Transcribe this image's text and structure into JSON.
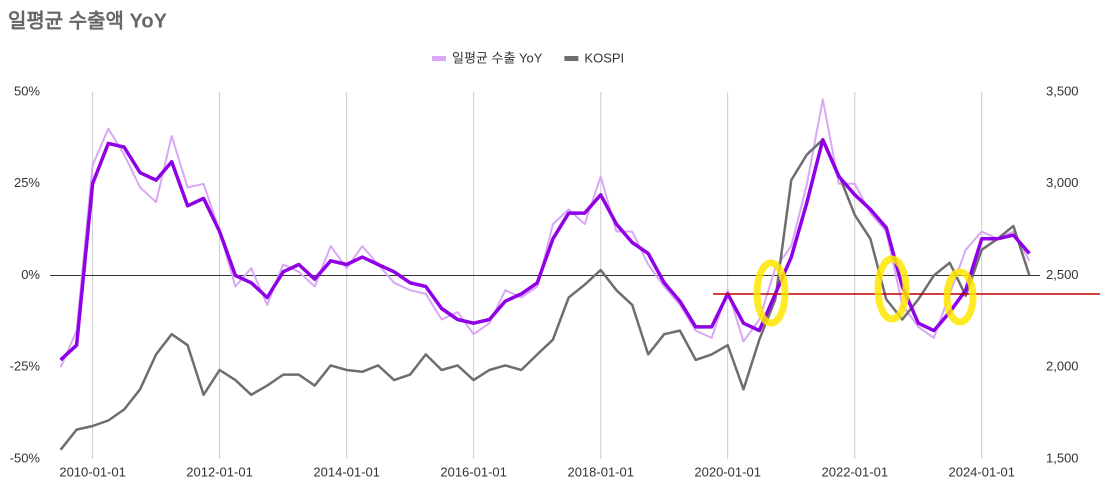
{
  "chart_data": {
    "type": "line",
    "title": "일평균 수출액 YoY",
    "x": [
      "2009-07-01",
      "2009-10-01",
      "2010-01-01",
      "2010-04-01",
      "2010-07-01",
      "2010-10-01",
      "2011-01-01",
      "2011-04-01",
      "2011-07-01",
      "2011-10-01",
      "2012-01-01",
      "2012-04-01",
      "2012-07-01",
      "2012-10-01",
      "2013-01-01",
      "2013-04-01",
      "2013-07-01",
      "2013-10-01",
      "2014-01-01",
      "2014-04-01",
      "2014-07-01",
      "2014-10-01",
      "2015-01-01",
      "2015-04-01",
      "2015-07-01",
      "2015-10-01",
      "2016-01-01",
      "2016-04-01",
      "2016-07-01",
      "2016-10-01",
      "2017-01-01",
      "2017-04-01",
      "2017-07-01",
      "2017-10-01",
      "2018-01-01",
      "2018-04-01",
      "2018-07-01",
      "2018-10-01",
      "2019-01-01",
      "2019-04-01",
      "2019-07-01",
      "2019-10-01",
      "2020-01-01",
      "2020-04-01",
      "2020-07-01",
      "2020-10-01",
      "2021-01-01",
      "2021-04-01",
      "2021-07-01",
      "2021-10-01",
      "2022-01-01",
      "2022-04-01",
      "2022-07-01",
      "2022-10-01",
      "2023-01-01",
      "2023-04-01",
      "2023-07-01",
      "2023-10-01",
      "2024-01-01",
      "2024-04-01",
      "2024-07-01",
      "2024-10-01"
    ],
    "series": [
      {
        "name": "일평균 수출 YoY",
        "color": "#d9a8f5",
        "width": 2,
        "axis": "y",
        "values": [
          -25,
          -15,
          30,
          40,
          33,
          24,
          20,
          38,
          24,
          25,
          12,
          -3,
          2,
          -8,
          3,
          1,
          -3,
          8,
          2,
          8,
          3,
          -2,
          -4,
          -5,
          -12,
          -10,
          -16,
          -13,
          -4,
          -6,
          -3,
          14,
          18,
          14,
          27,
          12,
          12,
          3,
          -3,
          -8,
          -15,
          -17,
          -4,
          -18,
          -12,
          2,
          8,
          25,
          48,
          25,
          25,
          17,
          12,
          -8,
          -14,
          -17,
          -5,
          7,
          12,
          10,
          12,
          4
        ]
      },
      {
        "name": "KOSPI",
        "color": "#6e6e6e",
        "width": 2.5,
        "axis": "y2",
        "values": [
          1550,
          1660,
          1680,
          1710,
          1770,
          1880,
          2070,
          2180,
          2120,
          1850,
          1985,
          1930,
          1850,
          1900,
          1960,
          1960,
          1900,
          2010,
          1985,
          1975,
          2010,
          1930,
          1960,
          2070,
          1985,
          2010,
          1930,
          1985,
          2010,
          1985,
          2070,
          2150,
          2380,
          2450,
          2530,
          2420,
          2340,
          2070,
          2180,
          2200,
          2040,
          2070,
          2120,
          1880,
          2150,
          2370,
          3020,
          3160,
          3240,
          3050,
          2830,
          2700,
          2370,
          2260,
          2370,
          2500,
          2570,
          2390,
          2640,
          2700,
          2770,
          2500
        ]
      },
      {
        "color": "#9000e6",
        "width": 3.5,
        "axis": "y",
        "values": [
          -23,
          -19,
          25,
          36,
          35,
          28,
          26,
          31,
          19,
          21,
          12,
          0,
          -2,
          -6,
          1,
          3,
          -1,
          4,
          3,
          5,
          3,
          1,
          -2,
          -3,
          -9,
          -12,
          -13,
          -12,
          -7,
          -5,
          -2,
          10,
          17,
          17,
          22,
          14,
          9,
          6,
          -2,
          -7,
          -14,
          -14,
          -5,
          -13,
          -15,
          -5,
          5,
          20,
          37,
          27,
          22,
          18,
          13,
          -3,
          -13,
          -15,
          -10,
          -4,
          10,
          10,
          11,
          6
        ]
      }
    ],
    "xlim": [
      "2009-05-01",
      "2024-12-01"
    ],
    "xticks": [
      "2010-01-01",
      "2012-01-01",
      "2014-01-01",
      "2016-01-01",
      "2018-01-01",
      "2020-01-01",
      "2022-01-01",
      "2024-01-01"
    ],
    "ylim": [
      -50,
      50
    ],
    "yticks": [
      {
        "value": -50,
        "label": "-50%"
      },
      {
        "value": -25,
        "label": "-25%"
      },
      {
        "value": 0,
        "label": "0%"
      },
      {
        "value": 25,
        "label": "25%"
      },
      {
        "value": 50,
        "label": "50%"
      }
    ],
    "y2lim": [
      1500,
      3500
    ],
    "y2ticks": [
      {
        "value": 1500,
        "label": "1,500"
      },
      {
        "value": 2000,
        "label": "2,000"
      },
      {
        "value": 2500,
        "label": "2,500"
      },
      {
        "value": 3000,
        "label": "3,000"
      },
      {
        "value": 3500,
        "label": "3,500"
      }
    ],
    "grid": "x",
    "legend": "top"
  }
}
